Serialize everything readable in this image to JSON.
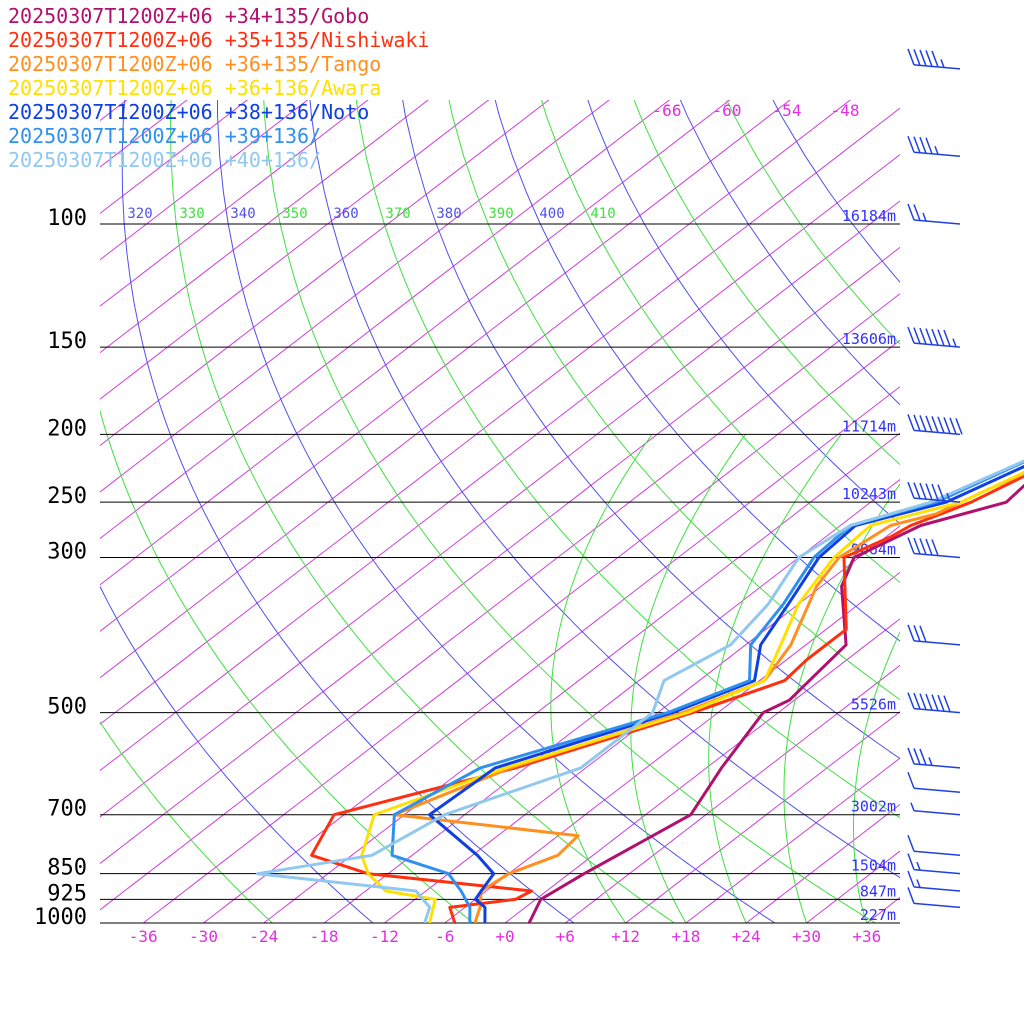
{
  "chart_data": {
    "type": "line",
    "title": "",
    "xlabel": "",
    "ylabel": "",
    "x_range": [
      -40,
      40
    ],
    "p_range": [
      1000,
      100
    ],
    "y_scale": "log",
    "pressure_levels": [
      "100",
      "150",
      "200",
      "250",
      "300",
      "500",
      "700",
      "850",
      "925",
      "1000"
    ],
    "heights": [
      {
        "p": 100,
        "label": "16184m"
      },
      {
        "p": 150,
        "label": "13606m"
      },
      {
        "p": 200,
        "label": "11714m"
      },
      {
        "p": 250,
        "label": "10243m"
      },
      {
        "p": 300,
        "label": "9064m"
      },
      {
        "p": 500,
        "label": "5526m"
      },
      {
        "p": 700,
        "label": "3002m"
      },
      {
        "p": 850,
        "label": "1504m"
      },
      {
        "p": 925,
        "label": "847m"
      },
      {
        "p": 1000,
        "label": "227m"
      }
    ],
    "x_ticks": [
      "-36",
      "-30",
      "-24",
      "-18",
      "-12",
      "-6",
      "+0",
      "+6",
      "+12",
      "+18",
      "+24",
      "+30",
      "+36"
    ],
    "upper_ticks": [
      "-66",
      "-60",
      "-54",
      "-48"
    ],
    "theta_labels": [
      "320",
      "330",
      "340",
      "350",
      "360",
      "370",
      "380",
      "390",
      "400",
      "410"
    ],
    "series": [
      {
        "name": "20250307T1200Z+06 +34+135/Gobo",
        "color": "#b0106e",
        "pts": [
          [
            1000,
            2.4
          ],
          [
            925,
            0.5
          ],
          [
            850,
            1.5
          ],
          [
            700,
            4.5
          ],
          [
            600,
            1.5
          ],
          [
            500,
            -1.5
          ],
          [
            480,
            -0.5
          ],
          [
            400,
            -2.0
          ],
          [
            330,
            -10.0
          ],
          [
            300,
            -12.5
          ],
          [
            270,
            -10.0
          ],
          [
            250,
            -4.5
          ],
          [
            200,
            -6.0
          ],
          [
            170,
            -12.5
          ],
          [
            150,
            -16.5
          ],
          [
            125,
            -23.0
          ],
          [
            100,
            -34.0
          ],
          [
            80,
            -45.0
          ],
          [
            60,
            -55.0
          ],
          [
            45,
            -60.0
          ]
        ]
      },
      {
        "name": "20250307T1200Z+06 +35+135/Nishiwaki",
        "color": "#ff3010",
        "pts": [
          [
            1000,
            -5.0
          ],
          [
            950,
            -7.5
          ],
          [
            925,
            -2.0
          ],
          [
            900,
            -1.5
          ],
          [
            850,
            -20.0
          ],
          [
            800,
            -28.0
          ],
          [
            700,
            -31.0
          ],
          [
            600,
            -19.0
          ],
          [
            500,
            -8.5
          ],
          [
            450,
            -3.5
          ],
          [
            420,
            -4.0
          ],
          [
            380,
            -4.0
          ],
          [
            300,
            -13.5
          ],
          [
            280,
            -11.5
          ],
          [
            270,
            -11.0
          ],
          [
            260,
            -9.5
          ],
          [
            250,
            -8.0
          ],
          [
            200,
            -3.0
          ],
          [
            170,
            -7.0
          ],
          [
            150,
            -10.5
          ],
          [
            125,
            -14.0
          ],
          [
            100,
            -27.0
          ],
          [
            80,
            -40.0
          ],
          [
            60,
            -52.0
          ],
          [
            45,
            -58.0
          ]
        ]
      },
      {
        "name": "20250307T1200Z+06 +36+135/Tango",
        "color": "#ff9020",
        "pts": [
          [
            1000,
            -3.0
          ],
          [
            950,
            -4.5
          ],
          [
            900,
            -6.5
          ],
          [
            850,
            -6.0
          ],
          [
            800,
            -3.5
          ],
          [
            750,
            -4.0
          ],
          [
            700,
            -25.0
          ],
          [
            600,
            -19.5
          ],
          [
            500,
            -9.5
          ],
          [
            450,
            -5.5
          ],
          [
            400,
            -7.5
          ],
          [
            330,
            -12.5
          ],
          [
            300,
            -14.0
          ],
          [
            270,
            -13.0
          ],
          [
            260,
            -10.0
          ],
          [
            240,
            -8.0
          ],
          [
            200,
            -2.5
          ],
          [
            170,
            -7.0
          ],
          [
            140,
            -12.5
          ],
          [
            100,
            -26.0
          ],
          [
            80,
            -38.0
          ],
          [
            60,
            -51.0
          ],
          [
            45,
            -57.0
          ]
        ]
      },
      {
        "name": "20250307T1200Z+06 +36+136/Awara",
        "color": "#ffe000",
        "pts": [
          [
            1000,
            -7.5
          ],
          [
            925,
            -10.0
          ],
          [
            900,
            -16.0
          ],
          [
            850,
            -20.0
          ],
          [
            800,
            -23.0
          ],
          [
            700,
            -27.0
          ],
          [
            600,
            -20.0
          ],
          [
            500,
            -9.0
          ],
          [
            450,
            -5.5
          ],
          [
            400,
            -8.5
          ],
          [
            350,
            -12.0
          ],
          [
            300,
            -14.5
          ],
          [
            270,
            -15.0
          ],
          [
            250,
            -9.0
          ],
          [
            200,
            -3.5
          ],
          [
            170,
            -7.0
          ],
          [
            140,
            -11.5
          ],
          [
            100,
            -25.0
          ],
          [
            80,
            -37.0
          ],
          [
            60,
            -50.0
          ],
          [
            45,
            -56.0
          ]
        ]
      },
      {
        "name": "20250307T1200Z+06 +38+136/Noto",
        "color": "#1040e0",
        "pts": [
          [
            1000,
            -2.0
          ],
          [
            950,
            -4.0
          ],
          [
            925,
            -6.0
          ],
          [
            900,
            -6.5
          ],
          [
            850,
            -7.5
          ],
          [
            800,
            -11.5
          ],
          [
            700,
            -21.5
          ],
          [
            600,
            -21.0
          ],
          [
            500,
            -10.5
          ],
          [
            450,
            -6.5
          ],
          [
            400,
            -10.5
          ],
          [
            350,
            -13.0
          ],
          [
            300,
            -16.0
          ],
          [
            270,
            -16.5
          ],
          [
            250,
            -10.5
          ],
          [
            200,
            -4.5
          ],
          [
            150,
            -8.0
          ],
          [
            130,
            -9.0
          ],
          [
            100,
            -21.5
          ],
          [
            80,
            -34.0
          ],
          [
            60,
            -48.0
          ],
          [
            45,
            -55.0
          ]
        ]
      },
      {
        "name": "20250307T1200Z+06 +39+136/",
        "color": "#3090f0",
        "pts": [
          [
            1000,
            -3.5
          ],
          [
            950,
            -5.5
          ],
          [
            900,
            -8.5
          ],
          [
            850,
            -12.0
          ],
          [
            800,
            -20.0
          ],
          [
            700,
            -25.0
          ],
          [
            600,
            -22.5
          ],
          [
            500,
            -11.0
          ],
          [
            450,
            -7.0
          ],
          [
            400,
            -11.5
          ],
          [
            350,
            -13.5
          ],
          [
            300,
            -16.5
          ],
          [
            270,
            -17.0
          ],
          [
            250,
            -11.5
          ],
          [
            200,
            -5.5
          ],
          [
            160,
            -8.0
          ],
          [
            130,
            -8.5
          ],
          [
            100,
            -18.5
          ],
          [
            80,
            -31.0
          ],
          [
            60,
            -46.0
          ],
          [
            45,
            -54.0
          ]
        ]
      },
      {
        "name": "20250307T1200Z+06 +40+136/",
        "color": "#90c8f0",
        "pts": [
          [
            1000,
            -8.0
          ],
          [
            950,
            -9.5
          ],
          [
            900,
            -13.0
          ],
          [
            850,
            -31.0
          ],
          [
            800,
            -22.0
          ],
          [
            700,
            -20.0
          ],
          [
            600,
            -12.5
          ],
          [
            500,
            -12.5
          ],
          [
            450,
            -15.5
          ],
          [
            400,
            -13.5
          ],
          [
            350,
            -15.0
          ],
          [
            300,
            -18.0
          ],
          [
            270,
            -17.0
          ],
          [
            250,
            -12.0
          ],
          [
            200,
            -5.5
          ],
          [
            160,
            -7.0
          ],
          [
            140,
            -5.0
          ],
          [
            100,
            -16.0
          ],
          [
            80,
            -27.0
          ],
          [
            60,
            -42.0
          ],
          [
            45,
            -51.0
          ]
        ]
      }
    ],
    "wind_barbs": [
      {
        "p": 60,
        "speed_kt": 55
      },
      {
        "p": 80,
        "speed_kt": 45
      },
      {
        "p": 100,
        "speed_kt": 25
      },
      {
        "p": 150,
        "speed_kt": 75
      },
      {
        "p": 200,
        "speed_kt": 90
      },
      {
        "p": 250,
        "speed_kt": 65
      },
      {
        "p": 300,
        "speed_kt": 50
      },
      {
        "p": 400,
        "speed_kt": 30
      },
      {
        "p": 500,
        "speed_kt": 70
      },
      {
        "p": 600,
        "speed_kt": 35
      },
      {
        "p": 650,
        "speed_kt": 10
      },
      {
        "p": 700,
        "speed_kt": 5
      },
      {
        "p": 800,
        "speed_kt": 10
      },
      {
        "p": 850,
        "speed_kt": 15
      },
      {
        "p": 900,
        "speed_kt": 15
      },
      {
        "p": 950,
        "speed_kt": 10
      }
    ]
  }
}
